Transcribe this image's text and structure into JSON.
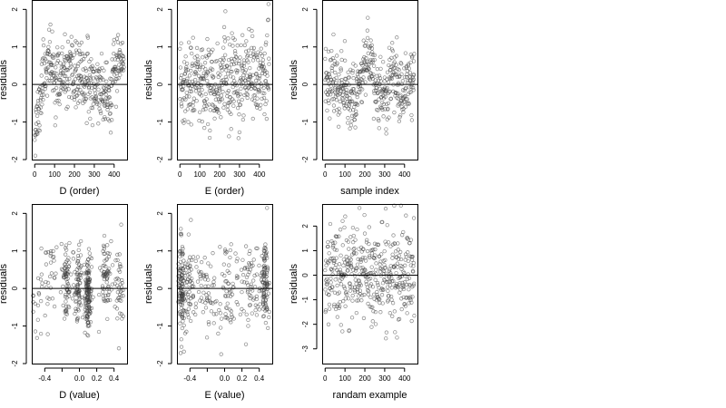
{
  "chart_data": [
    {
      "type": "scatter",
      "xlabel": "D (order)",
      "ylabel": "residuals",
      "xlim": [
        -15,
        465
      ],
      "ylim": [
        -2,
        2.25
      ],
      "xticks": [
        0,
        100,
        200,
        300,
        400
      ],
      "yticks": [
        -2,
        -1,
        0,
        1,
        2
      ],
      "hline": 0,
      "n_points": 450,
      "x_generation": "index",
      "residual_shape": [
        [
          0,
          -1.0
        ],
        [
          20,
          -0.8
        ],
        [
          40,
          0.2
        ],
        [
          60,
          0.55
        ],
        [
          80,
          0.65
        ],
        [
          100,
          0.1
        ],
        [
          140,
          0.2
        ],
        [
          200,
          0.25
        ],
        [
          260,
          0.1
        ],
        [
          300,
          -0.05
        ],
        [
          330,
          -0.1
        ],
        [
          360,
          -0.25
        ],
        [
          380,
          -0.55
        ],
        [
          400,
          0.3
        ],
        [
          420,
          0.6
        ],
        [
          450,
          0.5
        ]
      ],
      "noise_sd": 0.42,
      "seed": 11
    },
    {
      "type": "scatter",
      "xlabel": "E (order)",
      "ylabel": "residuals",
      "xlim": [
        -15,
        465
      ],
      "ylim": [
        -2,
        2.25
      ],
      "xticks": [
        0,
        100,
        200,
        300,
        400
      ],
      "yticks": [
        -2,
        -1,
        0,
        1,
        2
      ],
      "hline": 0,
      "n_points": 450,
      "x_generation": "index",
      "residual_shape": [
        [
          0,
          -0.2
        ],
        [
          100,
          0.1
        ],
        [
          200,
          0.05
        ],
        [
          300,
          0.05
        ],
        [
          400,
          0.1
        ],
        [
          450,
          0.6
        ]
      ],
      "noise_sd": 0.58,
      "seed": 23
    },
    {
      "type": "scatter",
      "xlabel": "sample index",
      "ylabel": "residuals",
      "xlim": [
        -15,
        465
      ],
      "ylim": [
        -2,
        2.25
      ],
      "xticks": [
        0,
        100,
        200,
        300,
        400
      ],
      "yticks": [
        -2,
        -1,
        0,
        1,
        2
      ],
      "hline": 0,
      "n_points": 450,
      "x_generation": "index",
      "residual_shape": [
        [
          0,
          0.2
        ],
        [
          50,
          0.1
        ],
        [
          100,
          -0.15
        ],
        [
          150,
          -0.35
        ],
        [
          200,
          0.55
        ],
        [
          230,
          0.65
        ],
        [
          260,
          -0.15
        ],
        [
          290,
          -0.3
        ],
        [
          320,
          -0.1
        ],
        [
          340,
          0.45
        ],
        [
          380,
          -0.35
        ],
        [
          420,
          0.05
        ],
        [
          450,
          0.1
        ]
      ],
      "noise_sd": 0.42,
      "seed": 37
    },
    {
      "type": "scatter",
      "xlabel": "D (value)",
      "ylabel": "residuals",
      "xlim": [
        -0.55,
        0.55
      ],
      "ylim": [
        -2,
        2.25
      ],
      "xticks": [
        -0.4,
        -0.2,
        0,
        0.2,
        0.4
      ],
      "xtick_labels": [
        "-0.4",
        "",
        "0.0",
        "0.2",
        "0.4"
      ],
      "yticks": [
        -2,
        -1,
        0,
        1,
        2
      ],
      "hline": 0,
      "n_points": 450,
      "x_generation": "clusters",
      "x_clusters": [
        [
          -0.5,
          0.06,
          20
        ],
        [
          -0.32,
          0.05,
          30
        ],
        [
          -0.15,
          0.02,
          70
        ],
        [
          -0.02,
          0.025,
          80
        ],
        [
          0.1,
          0.018,
          140
        ],
        [
          0.3,
          0.03,
          70
        ],
        [
          0.46,
          0.03,
          40
        ]
      ],
      "residual_shape": [
        [
          -0.55,
          -0.9
        ],
        [
          -0.4,
          0.2
        ],
        [
          -0.2,
          0.3
        ],
        [
          0,
          0.1
        ],
        [
          0.1,
          -0.2
        ],
        [
          0.3,
          0.3
        ],
        [
          0.55,
          0.0
        ]
      ],
      "noise_sd": 0.5,
      "seed": 53
    },
    {
      "type": "scatter",
      "xlabel": "E (value)",
      "ylabel": "residuals",
      "xlim": [
        -0.55,
        0.55
      ],
      "ylim": [
        -2,
        2.25
      ],
      "xticks": [
        -0.4,
        -0.2,
        0,
        0.2,
        0.4
      ],
      "xtick_labels": [
        "-0.4",
        "",
        "0.0",
        "0.2",
        "0.4"
      ],
      "yticks": [
        -2,
        -1,
        0,
        1,
        2
      ],
      "hline": 0,
      "n_points": 450,
      "x_generation": "clusters",
      "x_clusters": [
        [
          -0.5,
          0.02,
          110
        ],
        [
          -0.4,
          0.04,
          60
        ],
        [
          -0.2,
          0.08,
          60
        ],
        [
          0.05,
          0.06,
          60
        ],
        [
          0.3,
          0.06,
          60
        ],
        [
          0.47,
          0.025,
          100
        ]
      ],
      "residual_shape": [
        [
          -0.55,
          0.1
        ],
        [
          0,
          0.0
        ],
        [
          0.55,
          0.2
        ]
      ],
      "noise_sd": 0.6,
      "seed": 71
    },
    {
      "type": "scatter",
      "xlabel": "randam example",
      "ylabel": "residuals",
      "xlim": [
        -15,
        465
      ],
      "ylim": [
        -3.6,
        2.9
      ],
      "xticks": [
        0,
        100,
        200,
        300,
        400
      ],
      "yticks": [
        -3,
        -2,
        -1,
        0,
        1,
        2
      ],
      "hline": 0,
      "n_points": 450,
      "x_generation": "index",
      "residual_shape": [
        [
          0,
          0.0
        ],
        [
          450,
          0.0
        ]
      ],
      "noise_sd": 1.0,
      "seed": 97
    }
  ]
}
